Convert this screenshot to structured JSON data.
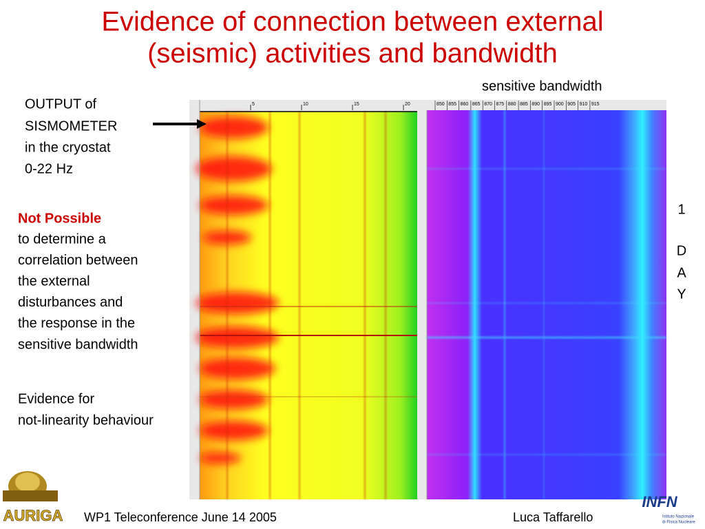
{
  "title": [
    "Evidence of connection between external",
    "(seismic) activities and bandwidth"
  ],
  "caption": "sensitive bandwidth",
  "sismometer_label": [
    "OUTPUT of",
    "SISMOMETER",
    "in the cryostat",
    "0-22 Hz"
  ],
  "note": {
    "highlight": "Not Possible",
    "lines": [
      "to determine a",
      "correlation between",
      "the external",
      "disturbances and",
      "the response in the",
      "sensitive bandwidth"
    ]
  },
  "evidence": [
    "Evidence for",
    "not-linearity behaviour"
  ],
  "day_label": [
    "1",
    "D",
    "A",
    "Y"
  ],
  "left_axis": [
    "5",
    "10",
    "15",
    "20"
  ],
  "right_axis": [
    "850",
    "855",
    "860",
    "865",
    "870",
    "875",
    "880",
    "885",
    "890",
    "895",
    "900",
    "905",
    "910",
    "915"
  ],
  "footer": {
    "left": "WP1 Teleconference June 14 2005",
    "right": "Luca Taffarello"
  },
  "logos": {
    "auriga": "AURIGA",
    "infn": "INFN",
    "infn_name": [
      "Istituto Nazionale",
      "di Fisica Nucleare"
    ]
  }
}
